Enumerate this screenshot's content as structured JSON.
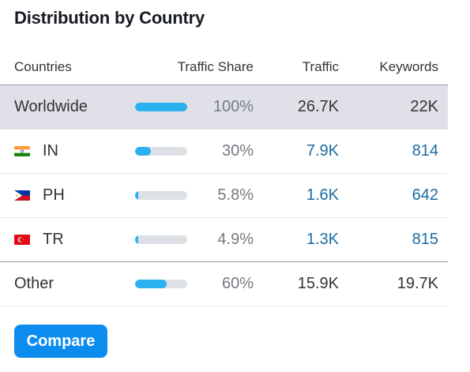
{
  "widget": {
    "title": "Distribution by Country",
    "compare_label": "Compare"
  },
  "table": {
    "columns": {
      "countries": "Countries",
      "share": "Traffic Share",
      "traffic": "Traffic",
      "keywords": "Keywords"
    },
    "rows": [
      {
        "name": "Worldwide",
        "flag": "",
        "share": "100%",
        "share_fraction": 1.0,
        "traffic": "26.7K",
        "keywords": "22K",
        "linked": false
      },
      {
        "name": "IN",
        "flag": "india-flag",
        "share": "30%",
        "share_fraction": 0.3,
        "traffic": "7.9K",
        "keywords": "814",
        "linked": true
      },
      {
        "name": "PH",
        "flag": "philippines-flag",
        "share": "5.8%",
        "share_fraction": 0.058,
        "traffic": "1.6K",
        "keywords": "642",
        "linked": true
      },
      {
        "name": "TR",
        "flag": "turkey-flag",
        "share": "4.9%",
        "share_fraction": 0.049,
        "traffic": "1.3K",
        "keywords": "815",
        "linked": true
      },
      {
        "name": "Other",
        "flag": "",
        "share": "60%",
        "share_fraction": 0.6,
        "traffic": "15.9K",
        "keywords": "19.7K",
        "linked": false
      }
    ]
  },
  "colors": {
    "bar_fill": "#2bb1ee",
    "bar_track": "#dde1e5",
    "link": "#1b6ba3",
    "button": "#0d8cf0",
    "worldwide_bg": "#e0e1e8"
  }
}
